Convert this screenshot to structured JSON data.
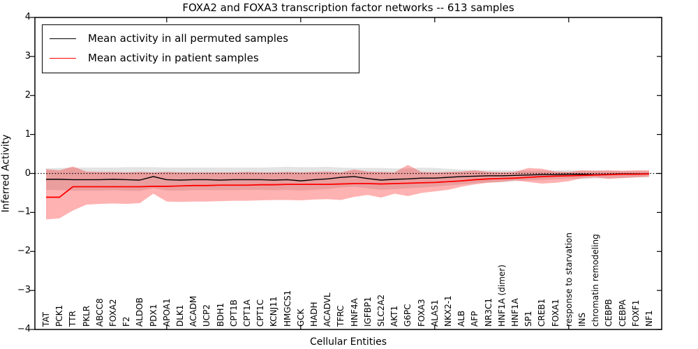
{
  "title": "FOXA2 and FOXA3 transcription factor networks -- 613 samples",
  "xlabel": "Cellular Entities",
  "ylabel": "Inferred Activity",
  "legend": {
    "entries": [
      {
        "label": "Mean activity in all permuted samples",
        "color": "#000000"
      },
      {
        "label": "Mean activity in patient samples",
        "color": "#ff0000"
      }
    ]
  },
  "colors": {
    "axis": "#000000",
    "permuted_line": "#000000",
    "patient_line": "#ff0000",
    "permuted_band": "rgba(128,128,128,0.22)",
    "patient_band": "rgba(255,0,0,0.30)",
    "zero_line": "#000000",
    "background": "#ffffff"
  },
  "chart_data": {
    "type": "line",
    "title": "FOXA2 and FOXA3 transcription factor networks -- 613 samples",
    "xlabel": "Cellular Entities",
    "ylabel": "Inferred Activity",
    "ylim": [
      -4,
      4
    ],
    "ytick_values": [
      4,
      3,
      2,
      1,
      0,
      -1,
      -2,
      -3,
      -4
    ],
    "ytick_labels": [
      "4",
      "3",
      "2",
      "1",
      "0",
      "−1",
      "−2",
      "−3",
      "−4"
    ],
    "grid": false,
    "zero_line": {
      "value": 0,
      "style": "dotted"
    },
    "legend_position": "upper left",
    "x_major_tick_indices": [
      9,
      19,
      29,
      39
    ],
    "categories": [
      "TAT",
      "PCK1",
      "TTR",
      "PKLR",
      "ABCC8",
      "FOXA2",
      "F2",
      "ALDOB",
      "PDX1",
      "APOA1",
      "DLK1",
      "ACADM",
      "UCP2",
      "BDH1",
      "CPT1B",
      "CPT1A",
      "CPT1C",
      "KCNJ11",
      "HMGCS1",
      "GCK",
      "HADH",
      "ACADVL",
      "TFRC",
      "HNF4A",
      "IGFBP1",
      "SLC2A2",
      "AKT1",
      "G6PC",
      "FOXA3",
      "ALAS1",
      "NKX2-1",
      "ALB",
      "AFP",
      "NR3C1",
      "HNF1A (dimer)",
      "HNF1A",
      "SP1",
      "CREB1",
      "FOXA1",
      "response to starvation",
      "INS",
      "chromatin remodeling",
      "CEBPB",
      "CEBPA",
      "FOXF1",
      "NF1"
    ],
    "series": [
      {
        "name": "Mean activity in all permuted samples",
        "color": "#000000",
        "line_width": 1.4,
        "band_color": "rgba(128,128,128,0.22)",
        "values": [
          -0.15,
          -0.15,
          -0.16,
          -0.16,
          -0.16,
          -0.15,
          -0.16,
          -0.17,
          -0.08,
          -0.16,
          -0.17,
          -0.16,
          -0.16,
          -0.17,
          -0.16,
          -0.16,
          -0.16,
          -0.17,
          -0.16,
          -0.19,
          -0.16,
          -0.14,
          -0.1,
          -0.08,
          -0.13,
          -0.17,
          -0.15,
          -0.14,
          -0.12,
          -0.12,
          -0.1,
          -0.08,
          -0.07,
          -0.06,
          -0.06,
          -0.05,
          -0.04,
          -0.03,
          -0.03,
          -0.02,
          -0.02,
          -0.03,
          -0.02,
          -0.01,
          -0.01,
          -0.01
        ],
        "band_upper": [
          0.13,
          0.14,
          0.15,
          0.15,
          0.15,
          0.15,
          0.16,
          0.16,
          0.16,
          0.15,
          0.15,
          0.15,
          0.15,
          0.15,
          0.15,
          0.15,
          0.15,
          0.16,
          0.17,
          0.16,
          0.16,
          0.17,
          0.15,
          0.14,
          0.14,
          0.14,
          0.13,
          0.13,
          0.15,
          0.14,
          0.12,
          0.1,
          0.09,
          0.08,
          0.08,
          0.08,
          0.07,
          0.07,
          0.08,
          0.09,
          0.07,
          0.08,
          0.07,
          0.06,
          0.06,
          0.06
        ],
        "band_lower": [
          -0.42,
          -0.43,
          -0.44,
          -0.44,
          -0.44,
          -0.43,
          -0.44,
          -0.45,
          -0.38,
          -0.44,
          -0.44,
          -0.43,
          -0.43,
          -0.43,
          -0.43,
          -0.42,
          -0.42,
          -0.43,
          -0.42,
          -0.44,
          -0.42,
          -0.4,
          -0.36,
          -0.34,
          -0.38,
          -0.42,
          -0.4,
          -0.38,
          -0.36,
          -0.34,
          -0.31,
          -0.28,
          -0.25,
          -0.23,
          -0.22,
          -0.2,
          -0.18,
          -0.17,
          -0.15,
          -0.13,
          -0.15,
          -0.13,
          -0.12,
          -0.11,
          -0.1,
          -0.1
        ]
      },
      {
        "name": "Mean activity in patient samples",
        "color": "#ff0000",
        "line_width": 1.8,
        "band_color": "rgba(255,0,0,0.30)",
        "values": [
          -0.61,
          -0.61,
          -0.34,
          -0.34,
          -0.34,
          -0.34,
          -0.34,
          -0.34,
          -0.33,
          -0.33,
          -0.32,
          -0.31,
          -0.31,
          -0.3,
          -0.3,
          -0.3,
          -0.29,
          -0.29,
          -0.28,
          -0.28,
          -0.28,
          -0.28,
          -0.27,
          -0.26,
          -0.26,
          -0.27,
          -0.26,
          -0.25,
          -0.24,
          -0.23,
          -0.21,
          -0.19,
          -0.16,
          -0.14,
          -0.13,
          -0.12,
          -0.1,
          -0.08,
          -0.07,
          -0.06,
          -0.05,
          -0.04,
          -0.03,
          -0.02,
          -0.02,
          -0.01
        ],
        "band_upper": [
          0.11,
          0.08,
          0.18,
          0.05,
          0.04,
          0.04,
          0.03,
          0.04,
          0.03,
          0.04,
          0.03,
          0.03,
          0.03,
          0.03,
          0.03,
          0.04,
          0.03,
          0.03,
          0.04,
          0.03,
          0.04,
          0.05,
          0.03,
          0.1,
          0.05,
          0.04,
          0.03,
          0.22,
          0.04,
          0.03,
          0.04,
          0.05,
          0.08,
          0.04,
          0.03,
          0.04,
          0.14,
          0.12,
          0.05,
          0.04,
          0.08,
          0.07,
          0.08,
          0.07,
          0.08,
          0.08
        ],
        "band_lower": [
          -1.18,
          -1.15,
          -0.95,
          -0.8,
          -0.78,
          -0.77,
          -0.78,
          -0.76,
          -0.52,
          -0.72,
          -0.73,
          -0.72,
          -0.72,
          -0.71,
          -0.7,
          -0.7,
          -0.69,
          -0.68,
          -0.68,
          -0.69,
          -0.67,
          -0.66,
          -0.68,
          -0.6,
          -0.55,
          -0.62,
          -0.52,
          -0.58,
          -0.5,
          -0.46,
          -0.42,
          -0.34,
          -0.28,
          -0.24,
          -0.22,
          -0.18,
          -0.22,
          -0.26,
          -0.24,
          -0.2,
          -0.12,
          -0.1,
          -0.14,
          -0.12,
          -0.1,
          -0.08
        ]
      }
    ]
  }
}
